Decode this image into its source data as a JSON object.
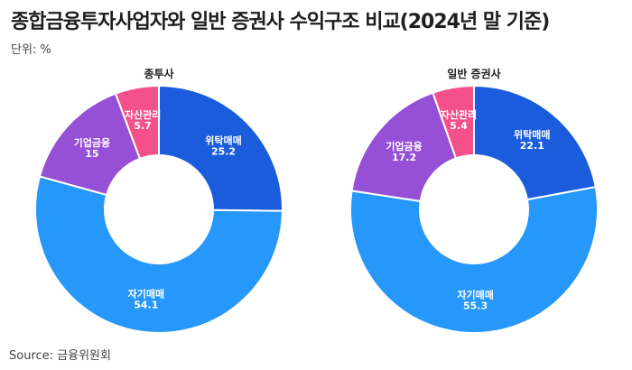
{
  "title": "종합금융투자사업자와 일반 증권사 수익구조 비교(2024년 말 기준)",
  "unit": "단위: %",
  "source": "Source: 금융위원회",
  "colors": {
    "위탁매매": "#1a5cdc",
    "자기매매": "#2697fb",
    "기업금융": "#9550d6",
    "자산관리": "#f4508a"
  },
  "chart_data": [
    {
      "type": "pie",
      "donut": true,
      "title": "종투사",
      "categories": [
        "위탁매매",
        "자기매매",
        "기업금융",
        "자산관리"
      ],
      "values": [
        25.2,
        54.1,
        15,
        5.7
      ],
      "unit": "%"
    },
    {
      "type": "pie",
      "donut": true,
      "title": "일반 증권사",
      "categories": [
        "위탁매매",
        "자기매매",
        "기업금융",
        "자산관리"
      ],
      "values": [
        22.1,
        55.3,
        17.2,
        5.4
      ],
      "unit": "%"
    }
  ]
}
